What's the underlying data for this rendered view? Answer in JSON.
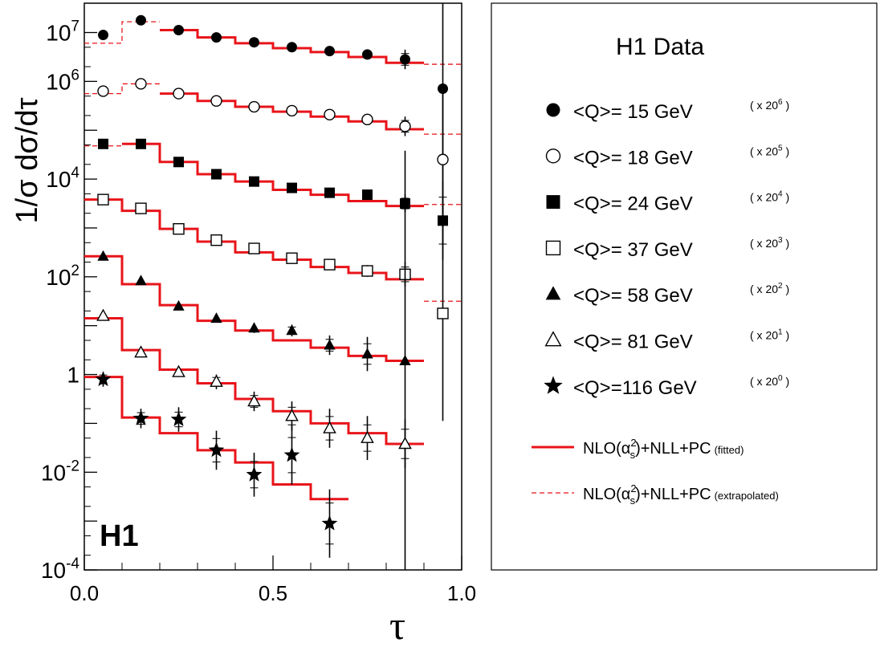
{
  "chart_data": {
    "type": "step-scatter",
    "experiment_label": "H1",
    "xlabel": "τ",
    "ylabel": "1/σ dσ/dτ",
    "xlim": [
      0.0,
      1.0
    ],
    "ylim_log10": [
      -4,
      7.6
    ],
    "x_ticks": [
      {
        "value": 0.0,
        "label": "0.0"
      },
      {
        "value": 0.5,
        "label": "0.5"
      },
      {
        "value": 1.0,
        "label": "1.0"
      }
    ],
    "y_ticks": [
      {
        "exp": 7,
        "base": "10",
        "sup": "7"
      },
      {
        "exp": 6,
        "base": "10",
        "sup": "6"
      },
      {
        "exp": 4,
        "base": "10",
        "sup": "4"
      },
      {
        "exp": 2,
        "base": "10",
        "sup": "2"
      },
      {
        "exp": 0,
        "base": "1",
        "sup": ""
      },
      {
        "exp": -2,
        "base": "10",
        "sup": "-2"
      },
      {
        "exp": -4,
        "base": "10",
        "sup": "-4"
      }
    ],
    "legend": {
      "title": "H1 Data",
      "model_fitted_main": "NLO(α",
      "model_fitted_tail": ")+NLL+PC",
      "model_fitted_note": "(fitted)",
      "model_extrap_main": "NLO(α",
      "model_extrap_tail": ")+NLL+PC",
      "model_extrap_note": "(extrapolated)",
      "alpha_sub": "s",
      "alpha_sup": "2"
    },
    "bin_edges": [
      0.0,
      0.1,
      0.2,
      0.3,
      0.4,
      0.5,
      0.6,
      0.7,
      0.8,
      0.9,
      1.0
    ],
    "points_x": [
      0.05,
      0.15,
      0.25,
      0.35,
      0.45,
      0.55,
      0.65,
      0.75,
      0.85,
      0.95
    ],
    "series": [
      {
        "name": "<Q>= 15 GeV",
        "scale_base": "x 20",
        "scale_exp": "6",
        "marker": "circle-filled",
        "points_log10": [
          6.95,
          7.25,
          7.05,
          6.9,
          6.8,
          6.7,
          6.62,
          6.55,
          6.45,
          5.85
        ],
        "err_log10": [
          0.03,
          0.03,
          0.03,
          0.03,
          0.03,
          0.04,
          0.04,
          0.05,
          0.2,
          3.2
        ],
        "fit_log10": [
          null,
          null,
          7.05,
          6.9,
          6.78,
          6.68,
          6.6,
          6.5,
          6.38,
          null
        ],
        "extrap_log10": [
          6.78,
          7.22,
          null,
          null,
          null,
          null,
          null,
          null,
          null,
          6.35
        ]
      },
      {
        "name": "<Q>= 18 GeV",
        "scale_base": "x 20",
        "scale_exp": "5",
        "marker": "circle-open",
        "points_log10": [
          5.8,
          5.95,
          5.75,
          5.6,
          5.48,
          5.4,
          5.32,
          5.22,
          5.08,
          4.4
        ],
        "err_log10": [
          0.03,
          0.03,
          0.03,
          0.03,
          0.03,
          0.04,
          0.05,
          0.08,
          0.2,
          1.4
        ],
        "fit_log10": [
          null,
          null,
          5.75,
          5.6,
          5.48,
          5.38,
          5.28,
          5.18,
          5.02,
          null
        ],
        "extrap_log10": [
          5.75,
          5.95,
          null,
          null,
          null,
          null,
          null,
          null,
          null,
          4.92
        ]
      },
      {
        "name": "<Q>= 24 GeV",
        "scale_base": "x 20",
        "scale_exp": "4",
        "marker": "square-filled",
        "points_log10": [
          4.72,
          4.72,
          4.35,
          4.1,
          3.95,
          3.82,
          3.72,
          3.68,
          3.5,
          3.15
        ],
        "err_log10": [
          0.03,
          0.03,
          0.03,
          0.03,
          0.04,
          0.04,
          0.05,
          0.08,
          0.18,
          0.8
        ],
        "fit_log10": [
          null,
          4.72,
          4.35,
          4.1,
          3.95,
          3.78,
          3.68,
          3.55,
          3.45,
          null
        ],
        "extrap_log10": [
          4.68,
          null,
          null,
          null,
          null,
          null,
          null,
          null,
          null,
          3.48
        ]
      },
      {
        "name": "<Q>= 37 GeV",
        "scale_base": "x 20",
        "scale_exp": "3",
        "marker": "square-open",
        "points_log10": [
          3.58,
          3.4,
          2.98,
          2.75,
          2.58,
          2.38,
          2.25,
          2.12,
          2.05,
          1.25
        ],
        "err_log10": [
          0.03,
          0.03,
          0.04,
          0.05,
          0.05,
          0.06,
          0.08,
          0.12,
          0.25,
          2.2
        ],
        "fit_log10": [
          3.58,
          3.35,
          2.98,
          2.72,
          2.5,
          2.35,
          2.2,
          2.08,
          1.95,
          null
        ],
        "extrap_log10": [
          null,
          null,
          null,
          null,
          null,
          null,
          null,
          null,
          null,
          1.5
        ]
      },
      {
        "name": "<Q>= 58 GeV",
        "scale_base": "x 20",
        "scale_exp": "2",
        "marker": "triangle-filled",
        "points_log10": [
          2.42,
          1.92,
          1.4,
          1.15,
          0.95,
          0.9,
          0.6,
          0.42,
          0.28
        ],
        "err_log10": [
          0.03,
          0.05,
          0.06,
          0.08,
          0.1,
          0.12,
          0.2,
          0.35,
          4.3
        ],
        "fit_log10": [
          2.42,
          1.85,
          1.42,
          1.1,
          0.9,
          0.7,
          0.55,
          0.38,
          0.28
        ],
        "extrap_log10": []
      },
      {
        "name": "<Q>= 81 GeV",
        "scale_base": "x 20",
        "scale_exp": "1",
        "marker": "triangle-open",
        "points_log10": [
          1.2,
          0.45,
          0.05,
          -0.15,
          -0.55,
          -0.85,
          -1.1,
          -1.3,
          -1.42
        ],
        "err_log10": [
          0.05,
          0.08,
          0.1,
          0.15,
          0.2,
          0.3,
          0.4,
          0.45,
          0.5
        ],
        "fit_log10": [
          1.15,
          0.5,
          0.1,
          -0.18,
          -0.5,
          -0.75,
          -1.0,
          -1.2,
          -1.42
        ],
        "extrap_log10": []
      },
      {
        "name": "<Q>=116 GeV",
        "scale_base": "x 20",
        "scale_exp": "0",
        "marker": "star",
        "points_log10": [
          -0.1,
          -0.9,
          -0.92,
          -1.55,
          -2.05,
          -1.65,
          -3.05
        ],
        "err_log10": [
          0.15,
          0.2,
          0.25,
          0.4,
          0.45,
          0.6,
          0.7
        ],
        "fit_log10": [
          -0.05,
          -0.88,
          -1.2,
          -1.55,
          -1.8,
          -2.25,
          -2.55
        ],
        "extrap_log10": []
      }
    ]
  }
}
